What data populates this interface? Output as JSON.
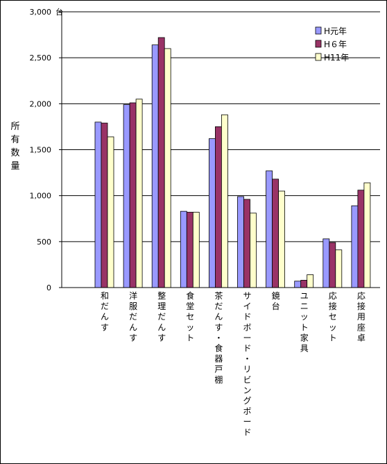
{
  "chart_data": {
    "type": "bar",
    "title": "",
    "xlabel": "",
    "ylabel": "所有数量",
    "unit": "台",
    "ylim": [
      0,
      3000
    ],
    "yticks": [
      0,
      500,
      1000,
      1500,
      2000,
      2500,
      3000
    ],
    "ytick_labels": [
      "0",
      "500",
      "1,000",
      "1,500",
      "2,000",
      "2,500",
      "3,000"
    ],
    "grid": "horizontal",
    "legend_position": "top-right",
    "categories": [
      "和だんす",
      "洋服だんす",
      "整理だんす",
      "食堂セット",
      "茶だんす・食器戸棚",
      "サイドボード・リビングボード",
      "鏡台",
      "ユニット家具",
      "応接セット",
      "応接用座卓"
    ],
    "series": [
      {
        "name": "H元年",
        "color": "#9999ff",
        "values": [
          1800,
          1990,
          2640,
          830,
          1620,
          990,
          1270,
          70,
          530,
          890
        ]
      },
      {
        "name": "H６年",
        "color": "#993366",
        "values": [
          1790,
          2010,
          2720,
          820,
          1750,
          960,
          1180,
          80,
          490,
          1060
        ]
      },
      {
        "name": "H11年",
        "color": "#ffffcc",
        "values": [
          1640,
          2050,
          2600,
          820,
          1880,
          810,
          1050,
          140,
          410,
          1140
        ]
      }
    ]
  }
}
